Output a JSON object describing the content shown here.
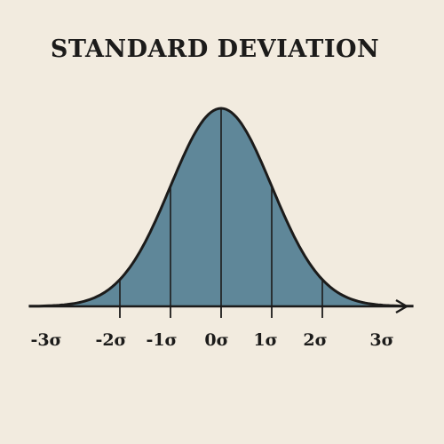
{
  "title": "STANDARD DEVIATION",
  "colors": {
    "background": "#f2ebdf",
    "fill": "#5f8799",
    "stroke": "#1c1b1a"
  },
  "chart_data": {
    "type": "area",
    "curve": "normal-distribution",
    "x_ticks": [
      -3,
      -2,
      -1,
      0,
      1,
      2,
      3
    ],
    "tick_labels": [
      "-3σ",
      "-2σ",
      "-1σ",
      "0σ",
      "1σ",
      "2σ",
      "3σ"
    ],
    "divider_lines_at": [
      -2,
      -1,
      0,
      1,
      2
    ],
    "xlim": [
      -3.8,
      3.8
    ]
  }
}
